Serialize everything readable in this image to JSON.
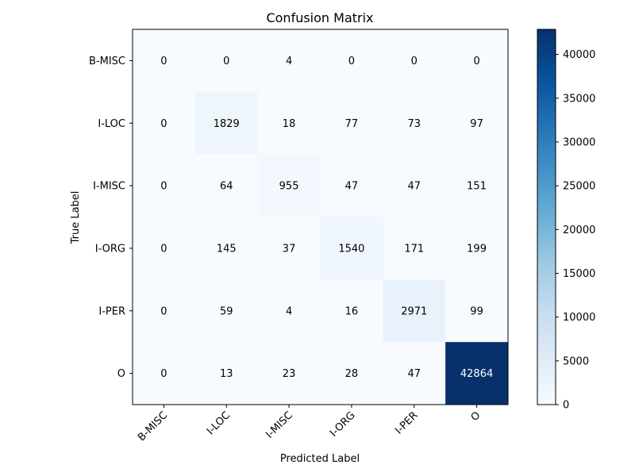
{
  "chart_data": {
    "type": "heatmap",
    "title": "Confusion Matrix",
    "xlabel": "Predicted Label",
    "ylabel": "True Label",
    "x_categories": [
      "B-MISC",
      "I-LOC",
      "I-MISC",
      "I-ORG",
      "I-PER",
      "O"
    ],
    "y_categories": [
      "B-MISC",
      "I-LOC",
      "I-MISC",
      "I-ORG",
      "I-PER",
      "O"
    ],
    "values": [
      [
        0,
        0,
        4,
        0,
        0,
        0
      ],
      [
        0,
        1829,
        18,
        77,
        73,
        97
      ],
      [
        0,
        64,
        955,
        47,
        47,
        151
      ],
      [
        0,
        145,
        37,
        1540,
        171,
        199
      ],
      [
        0,
        59,
        4,
        16,
        2971,
        99
      ],
      [
        0,
        13,
        23,
        28,
        47,
        42864
      ]
    ],
    "colormap": "Blues",
    "color_range": [
      0,
      42864
    ],
    "colorbar_ticks": [
      0,
      5000,
      10000,
      15000,
      20000,
      25000,
      30000,
      35000,
      40000
    ],
    "x_tick_rotation": 45
  }
}
